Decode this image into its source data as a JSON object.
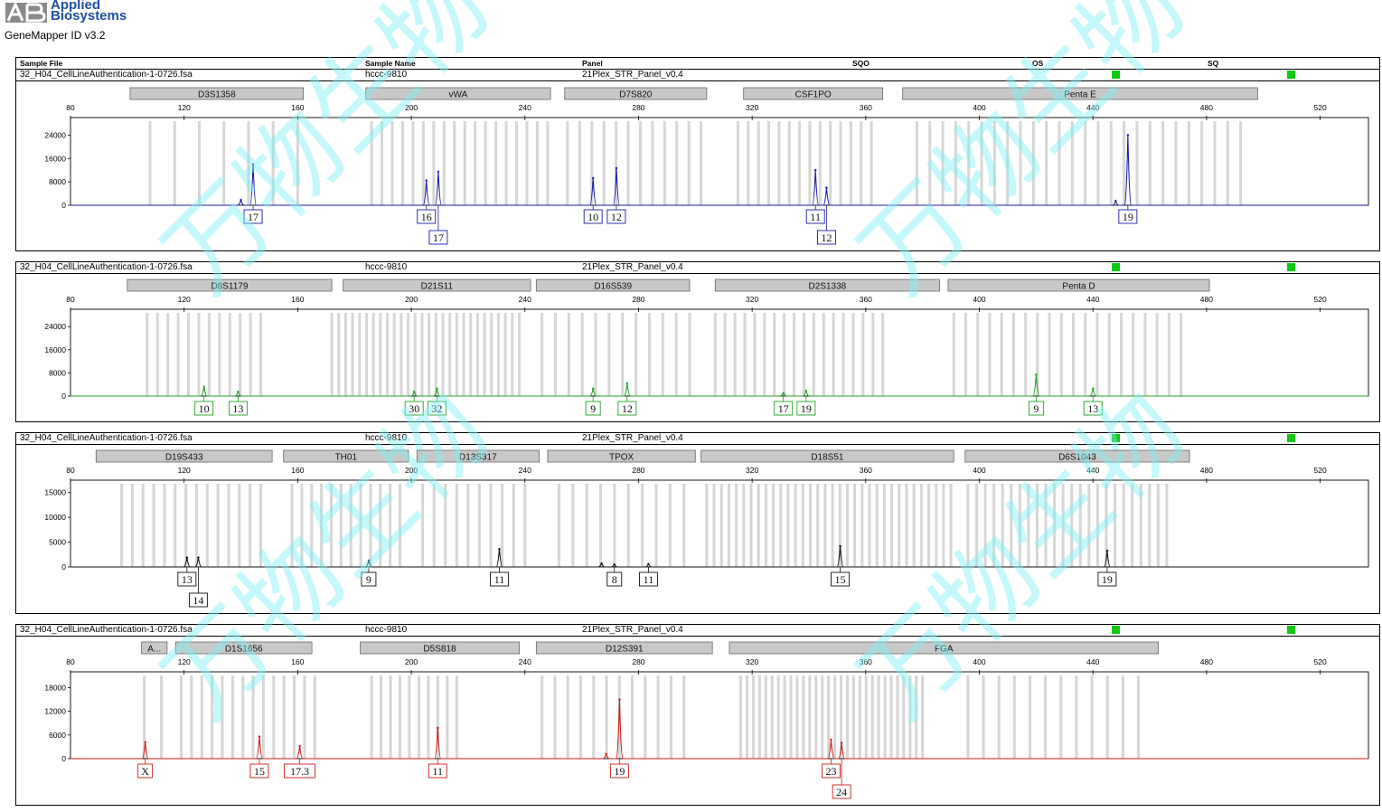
{
  "app": {
    "logo_line1": "Applied",
    "logo_line2": "Biosystems",
    "version": "GeneMapper ID v3.2"
  },
  "header": {
    "sample_file": "Sample File",
    "sample_name": "Sample Name",
    "panel": "Panel",
    "sqo": "SQO",
    "os": "OS",
    "sq": "SQ"
  },
  "colors": {
    "blue": "#1a1aa6",
    "green": "#22a022",
    "black": "#111111",
    "red": "#cc1a1a",
    "qc_pass": "#10c810",
    "bin": "#d2d2d2",
    "marker_box": "#c8c8c8",
    "watermark": "#7ff0f5"
  },
  "watermark_text": "万物生物",
  "chart_data": [
    {
      "type": "line",
      "dye": "blue",
      "sample_file": "32_H04_CellLineAuthentication-1-0726.fsa",
      "sample_name": "hccc-9810",
      "panel": "21Plex_STR_Panel_v0.4",
      "x_ticks": [
        80,
        120,
        160,
        200,
        240,
        280,
        320,
        360,
        400,
        440,
        480,
        520
      ],
      "xlim": [
        80,
        537
      ],
      "y_ticks": [
        0,
        8000,
        16000,
        24000
      ],
      "ylim": [
        0,
        30000
      ],
      "markers": [
        {
          "name": "D3S1358",
          "start": 101,
          "end": 162
        },
        {
          "name": "vWA",
          "start": 184,
          "end": 249
        },
        {
          "name": "D7S820",
          "start": 254,
          "end": 304
        },
        {
          "name": "CSF1PO",
          "start": 317,
          "end": 366
        },
        {
          "name": "Penta E",
          "start": 373,
          "end": 498
        }
      ],
      "bin_ranges": [
        [
          108,
          160,
          7
        ],
        [
          186,
          248,
          18
        ],
        [
          255,
          302,
          12
        ],
        [
          315,
          362,
          14
        ],
        [
          378,
          492,
          26
        ]
      ],
      "peaks": [
        {
          "x": 144.3,
          "height": 14000,
          "allele": "17"
        },
        {
          "x": 140,
          "height": 1800,
          "allele": ""
        },
        {
          "x": 205.3,
          "height": 8500,
          "allele": "16"
        },
        {
          "x": 209.5,
          "height": 11500,
          "allele": "17"
        },
        {
          "x": 264,
          "height": 9300,
          "allele": "10"
        },
        {
          "x": 272.2,
          "height": 12700,
          "allele": "12"
        },
        {
          "x": 342.3,
          "height": 12000,
          "allele": "11"
        },
        {
          "x": 346.2,
          "height": 6000,
          "allele": "12"
        },
        {
          "x": 452.3,
          "height": 24000,
          "allele": "19"
        },
        {
          "x": 448,
          "height": 1500,
          "allele": ""
        }
      ],
      "labels": [
        {
          "peak": 0,
          "row": 0
        },
        {
          "peak": 2,
          "row": 0
        },
        {
          "peak": 3,
          "row": 1
        },
        {
          "peak": 4,
          "row": 0
        },
        {
          "peak": 5,
          "row": 0
        },
        {
          "peak": 6,
          "row": 0
        },
        {
          "peak": 7,
          "row": 1
        },
        {
          "peak": 8,
          "row": 0
        }
      ]
    },
    {
      "type": "line",
      "dye": "green",
      "sample_file": "32_H04_CellLineAuthentication-1-0726.fsa",
      "sample_name": "hccc-9810",
      "panel": "21Plex_STR_Panel_v0.4",
      "x_ticks": [
        80,
        120,
        160,
        200,
        240,
        280,
        320,
        360,
        400,
        440,
        480,
        520
      ],
      "xlim": [
        80,
        537
      ],
      "y_ticks": [
        0,
        8000,
        16000,
        24000
      ],
      "ylim": [
        0,
        30000
      ],
      "markers": [
        {
          "name": "D8S1179",
          "start": 100,
          "end": 172
        },
        {
          "name": "D21S11",
          "start": 176,
          "end": 242
        },
        {
          "name": "D16S539",
          "start": 244,
          "end": 298
        },
        {
          "name": "D2S1338",
          "start": 307,
          "end": 386
        },
        {
          "name": "Penta D",
          "start": 389,
          "end": 481
        }
      ],
      "bin_ranges": [
        [
          107,
          147,
          12
        ],
        [
          172,
          238,
          28
        ],
        [
          246,
          298,
          12
        ],
        [
          307,
          366,
          18
        ],
        [
          391,
          471,
          20
        ]
      ],
      "peaks": [
        {
          "x": 127,
          "height": 3200,
          "allele": "10"
        },
        {
          "x": 139,
          "height": 1500,
          "allele": "13"
        },
        {
          "x": 201,
          "height": 1500,
          "allele": "30"
        },
        {
          "x": 209,
          "height": 2600,
          "allele": "32"
        },
        {
          "x": 264,
          "height": 2600,
          "allele": "9"
        },
        {
          "x": 276,
          "height": 4400,
          "allele": "12"
        },
        {
          "x": 331,
          "height": 1000,
          "allele": "17"
        },
        {
          "x": 339,
          "height": 1800,
          "allele": "19"
        },
        {
          "x": 420,
          "height": 7400,
          "allele": "9"
        },
        {
          "x": 440,
          "height": 2600,
          "allele": "13"
        }
      ],
      "labels": [
        {
          "peak": 0,
          "row": 0
        },
        {
          "peak": 1,
          "row": 0
        },
        {
          "peak": 2,
          "row": 0
        },
        {
          "peak": 3,
          "row": 0
        },
        {
          "peak": 4,
          "row": 0
        },
        {
          "peak": 5,
          "row": 0
        },
        {
          "peak": 6,
          "row": 0
        },
        {
          "peak": 7,
          "row": 0
        },
        {
          "peak": 8,
          "row": 0
        },
        {
          "peak": 9,
          "row": 0
        }
      ]
    },
    {
      "type": "line",
      "dye": "black",
      "sample_file": "32_H04_CellLineAuthentication-1-0726.fsa",
      "sample_name": "hccc-9810",
      "panel": "21Plex_STR_Panel_v0.4",
      "x_ticks": [
        80,
        120,
        160,
        200,
        240,
        280,
        320,
        360,
        400,
        440,
        480,
        520
      ],
      "xlim": [
        80,
        537
      ],
      "y_ticks": [
        0,
        5000,
        10000,
        15000
      ],
      "ylim": [
        0,
        17500
      ],
      "markers": [
        {
          "name": "D19S433",
          "start": 89,
          "end": 151
        },
        {
          "name": "TH01",
          "start": 155,
          "end": 199
        },
        {
          "name": "D13S317",
          "start": 202,
          "end": 245
        },
        {
          "name": "TPOX",
          "start": 248,
          "end": 300
        },
        {
          "name": "D18S51",
          "start": 302,
          "end": 391
        },
        {
          "name": "D6S1043",
          "start": 395,
          "end": 474
        }
      ],
      "bin_ranges": [
        [
          98,
          147,
          14
        ],
        [
          158,
          196,
          12
        ],
        [
          204,
          240,
          10
        ],
        [
          252,
          296,
          10
        ],
        [
          304,
          390,
          34
        ],
        [
          396,
          466,
          24
        ]
      ],
      "peaks": [
        {
          "x": 121,
          "height": 1900,
          "allele": "13"
        },
        {
          "x": 125,
          "height": 1900,
          "allele": "14"
        },
        {
          "x": 185,
          "height": 1300,
          "allele": "9"
        },
        {
          "x": 231,
          "height": 3600,
          "allele": "11"
        },
        {
          "x": 267,
          "height": 700,
          "allele": ""
        },
        {
          "x": 271.5,
          "height": 500,
          "allele": "8"
        },
        {
          "x": 283.5,
          "height": 600,
          "allele": "11"
        },
        {
          "x": 351,
          "height": 4200,
          "allele": "15"
        },
        {
          "x": 445,
          "height": 3300,
          "allele": "19"
        }
      ],
      "labels": [
        {
          "peak": 0,
          "row": 0
        },
        {
          "peak": 1,
          "row": 1
        },
        {
          "peak": 2,
          "row": 0
        },
        {
          "peak": 3,
          "row": 0
        },
        {
          "peak": 5,
          "row": 0
        },
        {
          "peak": 6,
          "row": 0
        },
        {
          "peak": 7,
          "row": 0
        },
        {
          "peak": 8,
          "row": 0
        }
      ]
    },
    {
      "type": "line",
      "dye": "red",
      "sample_file": "32_H04_CellLineAuthentication-1-0726.fsa",
      "sample_name": "hccc-9810",
      "panel": "21Plex_STR_Panel_v0.4",
      "x_ticks": [
        80,
        120,
        160,
        200,
        240,
        280,
        320,
        360,
        400,
        440,
        480,
        520
      ],
      "xlim": [
        80,
        537
      ],
      "y_ticks": [
        0,
        6000,
        12000,
        18000
      ],
      "ylim": [
        0,
        22000
      ],
      "markers": [
        {
          "name": "A...",
          "start": 105,
          "end": 114
        },
        {
          "name": "D1S1656",
          "start": 117,
          "end": 165
        },
        {
          "name": "D5S818",
          "start": 182,
          "end": 238
        },
        {
          "name": "D12S391",
          "start": 244,
          "end": 306
        },
        {
          "name": "FGA",
          "start": 312,
          "end": 463
        }
      ],
      "bin_ranges": [
        [
          106,
          112,
          2
        ],
        [
          119,
          166,
          14
        ],
        [
          186,
          216,
          10
        ],
        [
          246,
          296,
          12
        ],
        [
          316,
          380,
          30
        ],
        [
          396,
          456,
          12
        ]
      ],
      "peaks": [
        {
          "x": 106.3,
          "height": 4200,
          "allele": "X"
        },
        {
          "x": 146.5,
          "height": 5600,
          "allele": "15"
        },
        {
          "x": 160.7,
          "height": 3200,
          "allele": "17.3"
        },
        {
          "x": 209.3,
          "height": 7800,
          "allele": "11"
        },
        {
          "x": 268.6,
          "height": 1200,
          "allele": ""
        },
        {
          "x": 273.3,
          "height": 15000,
          "allele": "19"
        },
        {
          "x": 347.8,
          "height": 4800,
          "allele": "23"
        },
        {
          "x": 351.5,
          "height": 4000,
          "allele": "24"
        }
      ],
      "labels": [
        {
          "peak": 0,
          "row": 0
        },
        {
          "peak": 1,
          "row": 0
        },
        {
          "peak": 2,
          "row": 0
        },
        {
          "peak": 3,
          "row": 0
        },
        {
          "peak": 5,
          "row": 0
        },
        {
          "peak": 6,
          "row": 0
        },
        {
          "peak": 7,
          "row": 1
        }
      ]
    }
  ]
}
